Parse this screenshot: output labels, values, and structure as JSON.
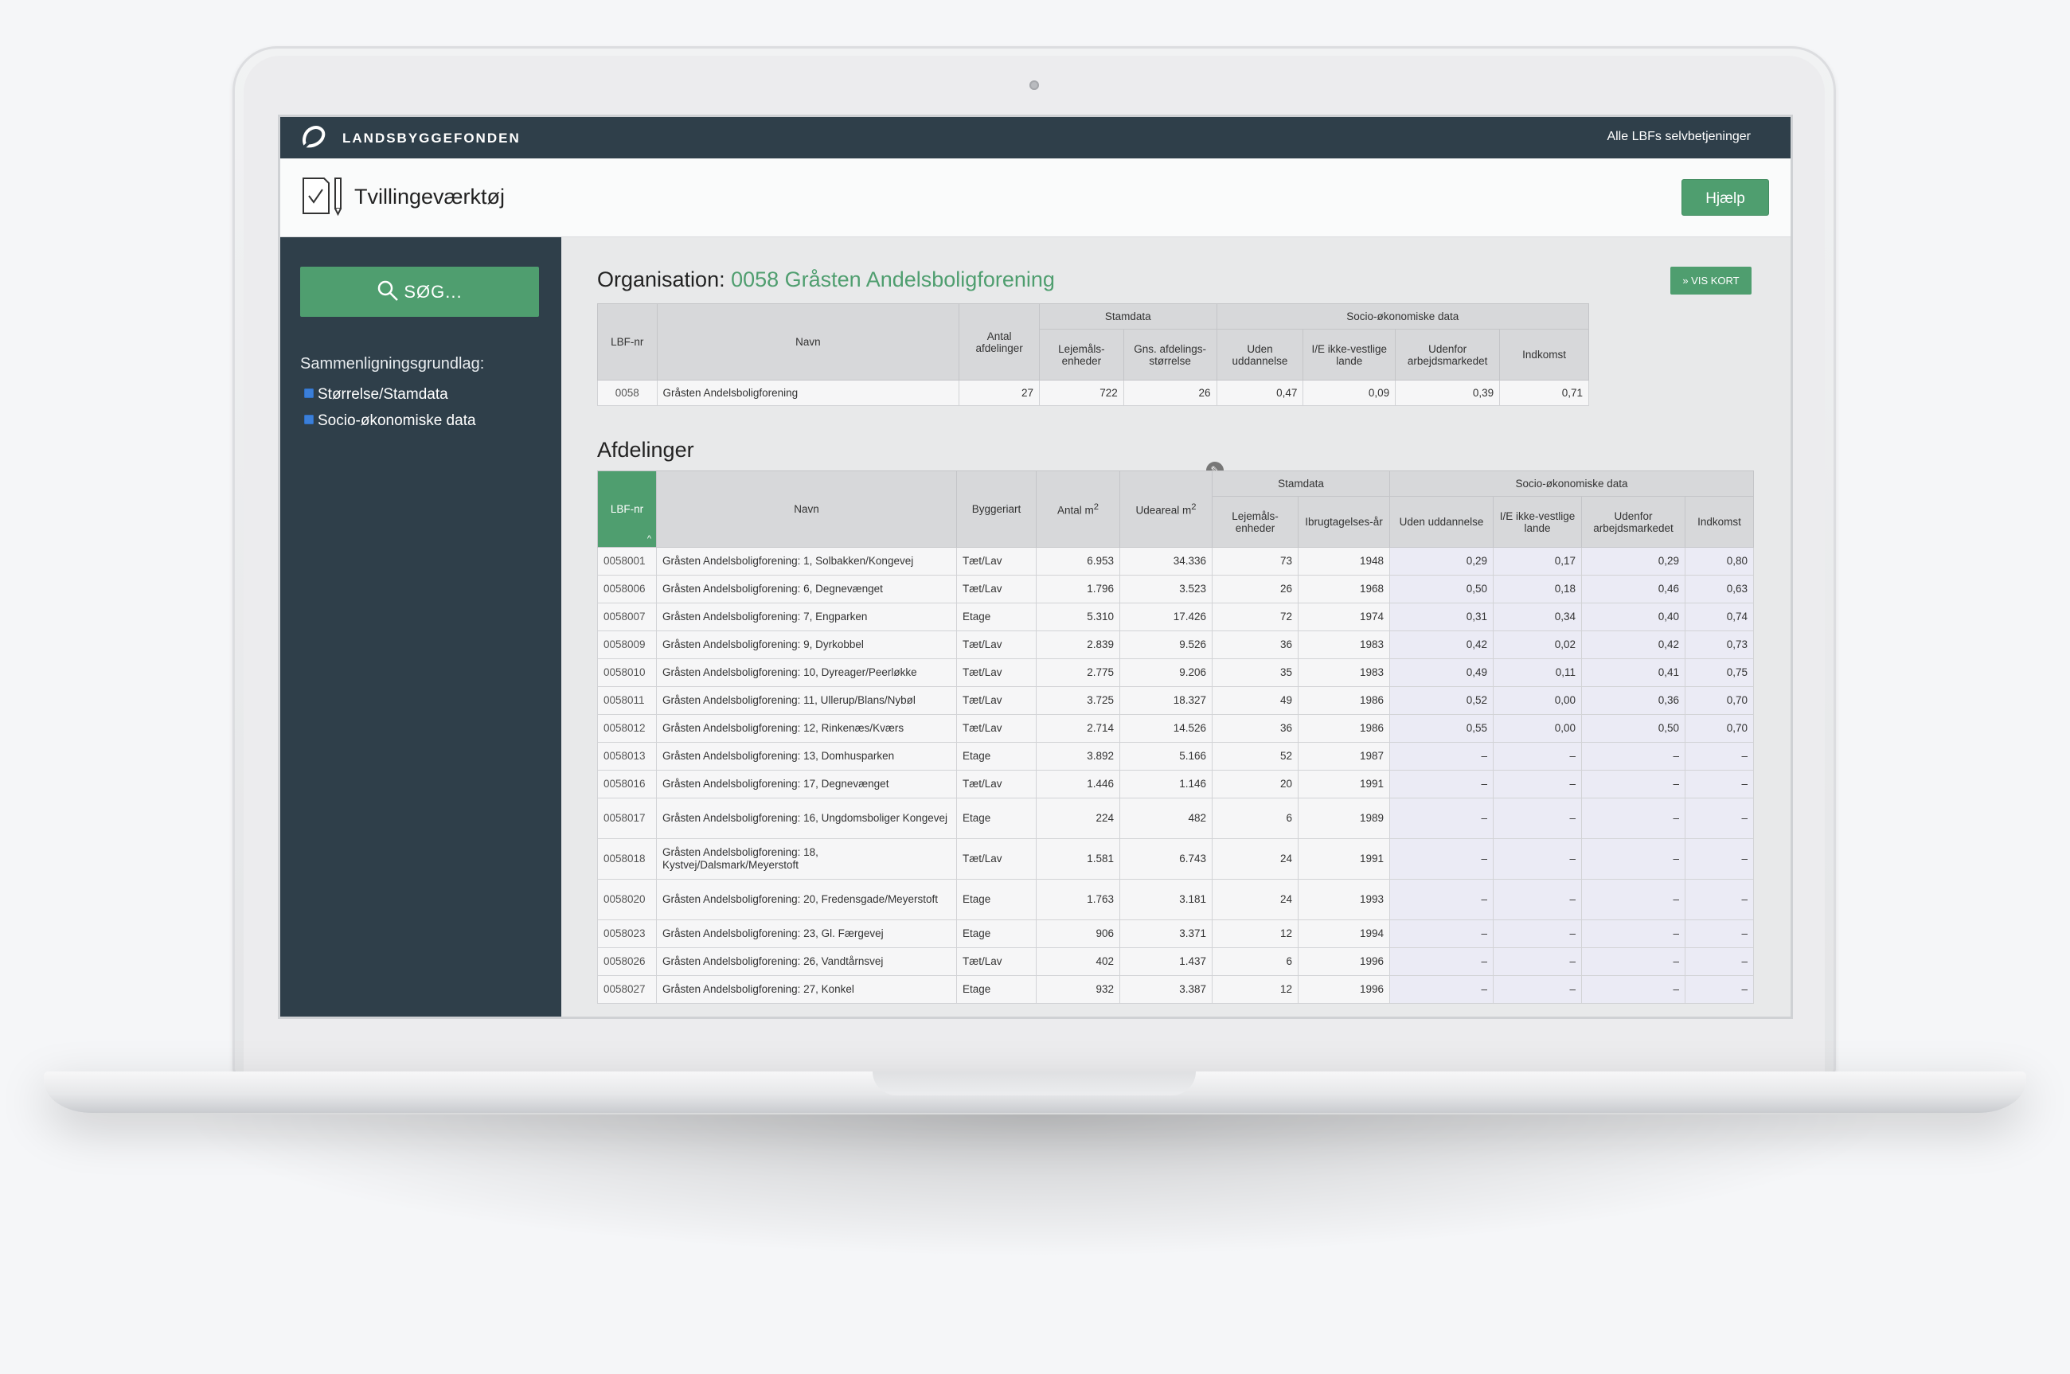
{
  "header": {
    "brand": "LANDSBYGGEFONDEN",
    "top_link": "Alle LBFs selvbetjeninger"
  },
  "titlebar": {
    "title": "Tvillingeværktøj",
    "help_label": "Hjælp"
  },
  "sidebar": {
    "search_label": "SØG...",
    "compare_label": "Sammenligningsgrundlag:",
    "options": [
      {
        "label": "Størrelse/Stamdata",
        "checked": true
      },
      {
        "label": "Socio-økonomiske data",
        "checked": true
      }
    ]
  },
  "organisation": {
    "prefix": "Organisation: ",
    "name": "0058 Gråsten Andelsboligforening",
    "map_button": "» VIS KORT",
    "group_headers": {
      "stamdata": "Stamdata",
      "socio": "Socio-økonomiske data"
    },
    "columns": {
      "lbf": "LBF-nr",
      "navn": "Navn",
      "antal": "Antal afdelinger",
      "lejemaal": "Lejemåls-enheder",
      "gns": "Gns. afdelings-størrelse",
      "uden": "Uden uddannelse",
      "ie": "I/E ikke-vestlige lande",
      "udenfor": "Udenfor arbejdsmarkedet",
      "indkomst": "Indkomst"
    },
    "row": {
      "lbf": "0058",
      "navn": "Gråsten Andelsboligforening",
      "antal": "27",
      "lejemaal": "722",
      "gns": "26",
      "uden": "0,47",
      "ie": "0,09",
      "udenfor": "0,39",
      "indkomst": "0,71"
    }
  },
  "afdelinger": {
    "title": "Afdelinger",
    "group_headers": {
      "stamdata": "Stamdata",
      "socio": "Socio-økonomiske data"
    },
    "columns": {
      "lbf": "LBF-nr",
      "navn": "Navn",
      "byggeriart": "Byggeriart",
      "antal_m2": "Antal m",
      "udeareal_m2": "Udeareal m",
      "sup": "2",
      "lejemaal": "Lejemåls-enheder",
      "ibrug": "Ibrugtagelses-år",
      "uden": "Uden uddannelse",
      "ie": "I/E ikke-vestlige lande",
      "udenfor": "Udenfor arbejdsmarkedet",
      "indkomst": "Indkomst"
    },
    "rows": [
      {
        "lbf": "0058001",
        "navn": "Gråsten Andelsboligforening: 1, Solbakken/Kongevej",
        "art": "Tæt/Lav",
        "m2": "6.953",
        "ude": "34.336",
        "lej": "73",
        "aar": "1948",
        "uden": "0,29",
        "ie": "0,17",
        "udenfor": "0,29",
        "ind": "0,80"
      },
      {
        "lbf": "0058006",
        "navn": "Gråsten Andelsboligforening: 6, Degnevænget",
        "art": "Tæt/Lav",
        "m2": "1.796",
        "ude": "3.523",
        "lej": "26",
        "aar": "1968",
        "uden": "0,50",
        "ie": "0,18",
        "udenfor": "0,46",
        "ind": "0,63"
      },
      {
        "lbf": "0058007",
        "navn": "Gråsten Andelsboligforening: 7, Engparken",
        "art": "Etage",
        "m2": "5.310",
        "ude": "17.426",
        "lej": "72",
        "aar": "1974",
        "uden": "0,31",
        "ie": "0,34",
        "udenfor": "0,40",
        "ind": "0,74"
      },
      {
        "lbf": "0058009",
        "navn": "Gråsten Andelsboligforening: 9, Dyrkobbel",
        "art": "Tæt/Lav",
        "m2": "2.839",
        "ude": "9.526",
        "lej": "36",
        "aar": "1983",
        "uden": "0,42",
        "ie": "0,02",
        "udenfor": "0,42",
        "ind": "0,73"
      },
      {
        "lbf": "0058010",
        "navn": "Gråsten Andelsboligforening: 10, Dyreager/Peerløkke",
        "art": "Tæt/Lav",
        "m2": "2.775",
        "ude": "9.206",
        "lej": "35",
        "aar": "1983",
        "uden": "0,49",
        "ie": "0,11",
        "udenfor": "0,41",
        "ind": "0,75"
      },
      {
        "lbf": "0058011",
        "navn": "Gråsten Andelsboligforening: 11, Ullerup/Blans/Nybøl",
        "art": "Tæt/Lav",
        "m2": "3.725",
        "ude": "18.327",
        "lej": "49",
        "aar": "1986",
        "uden": "0,52",
        "ie": "0,00",
        "udenfor": "0,36",
        "ind": "0,70"
      },
      {
        "lbf": "0058012",
        "navn": "Gråsten Andelsboligforening: 12, Rinkenæs/Kværs",
        "art": "Tæt/Lav",
        "m2": "2.714",
        "ude": "14.526",
        "lej": "36",
        "aar": "1986",
        "uden": "0,55",
        "ie": "0,00",
        "udenfor": "0,50",
        "ind": "0,70"
      },
      {
        "lbf": "0058013",
        "navn": "Gråsten Andelsboligforening: 13, Domhusparken",
        "art": "Etage",
        "m2": "3.892",
        "ude": "5.166",
        "lej": "52",
        "aar": "1987",
        "uden": "–",
        "ie": "–",
        "udenfor": "–",
        "ind": "–"
      },
      {
        "lbf": "0058016",
        "navn": "Gråsten Andelsboligforening: 17, Degnevænget",
        "art": "Tæt/Lav",
        "m2": "1.446",
        "ude": "1.146",
        "lej": "20",
        "aar": "1991",
        "uden": "–",
        "ie": "–",
        "udenfor": "–",
        "ind": "–"
      },
      {
        "lbf": "0058017",
        "navn": "Gråsten Andelsboligforening: 16, Ungdomsboliger Kongevej",
        "art": "Etage",
        "m2": "224",
        "ude": "482",
        "lej": "6",
        "aar": "1989",
        "uden": "–",
        "ie": "–",
        "udenfor": "–",
        "ind": "–"
      },
      {
        "lbf": "0058018",
        "navn": "Gråsten Andelsboligforening: 18, Kystvej/Dalsmark/Meyerstoft",
        "art": "Tæt/Lav",
        "m2": "1.581",
        "ude": "6.743",
        "lej": "24",
        "aar": "1991",
        "uden": "–",
        "ie": "–",
        "udenfor": "–",
        "ind": "–"
      },
      {
        "lbf": "0058020",
        "navn": "Gråsten Andelsboligforening: 20, Fredensgade/Meyerstoft",
        "art": "Etage",
        "m2": "1.763",
        "ude": "3.181",
        "lej": "24",
        "aar": "1993",
        "uden": "–",
        "ie": "–",
        "udenfor": "–",
        "ind": "–"
      },
      {
        "lbf": "0058023",
        "navn": "Gråsten Andelsboligforening: 23, Gl. Færgevej",
        "art": "Etage",
        "m2": "906",
        "ude": "3.371",
        "lej": "12",
        "aar": "1994",
        "uden": "–",
        "ie": "–",
        "udenfor": "–",
        "ind": "–"
      },
      {
        "lbf": "0058026",
        "navn": "Gråsten Andelsboligforening: 26, Vandtårnsvej",
        "art": "Tæt/Lav",
        "m2": "402",
        "ude": "1.437",
        "lej": "6",
        "aar": "1996",
        "uden": "–",
        "ie": "–",
        "udenfor": "–",
        "ind": "–"
      },
      {
        "lbf": "0058027",
        "navn": "Gråsten Andelsboligforening: 27, Konkel",
        "art": "Etage",
        "m2": "932",
        "ude": "3.387",
        "lej": "12",
        "aar": "1996",
        "uden": "–",
        "ie": "–",
        "udenfor": "–",
        "ind": "–"
      }
    ]
  },
  "colors": {
    "topbar": "#2f3f4a",
    "accent": "#4f9e6f"
  }
}
